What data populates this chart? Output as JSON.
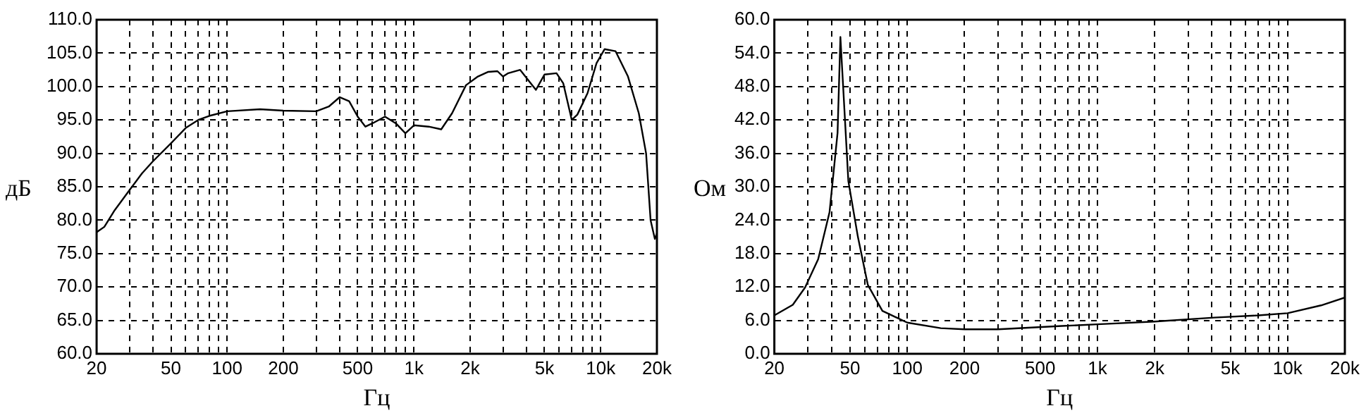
{
  "chart_data": [
    {
      "type": "line",
      "xlabel": "Гц",
      "ylabel": "дБ",
      "log": "x",
      "grid": true,
      "marker": "none",
      "line_style": "solid",
      "xlim": [
        20,
        20000
      ],
      "xticks": [
        20,
        {
          "value": 30,
          "label": null
        },
        {
          "value": 40,
          "label": null
        },
        50,
        {
          "value": 60,
          "label": null
        },
        {
          "value": 70,
          "label": null
        },
        {
          "value": 80,
          "label": null
        },
        {
          "value": 90,
          "label": null
        },
        100,
        200,
        {
          "value": 300,
          "label": null
        },
        {
          "value": 400,
          "label": null
        },
        500,
        {
          "value": 600,
          "label": null
        },
        {
          "value": 700,
          "label": null
        },
        {
          "value": 800,
          "label": null
        },
        {
          "value": 900,
          "label": null
        },
        {
          "value": 1000,
          "label": "1k"
        },
        {
          "value": 2000,
          "label": "2k"
        },
        {
          "value": 3000,
          "label": null
        },
        {
          "value": 4000,
          "label": null
        },
        {
          "value": 5000,
          "label": "5k"
        },
        {
          "value": 6000,
          "label": null
        },
        {
          "value": 7000,
          "label": null
        },
        {
          "value": 8000,
          "label": null
        },
        {
          "value": 9000,
          "label": null
        },
        {
          "value": 10000,
          "label": "10k"
        },
        {
          "value": 20000,
          "label": "20k"
        }
      ],
      "ylim": [
        60,
        110
      ],
      "yticks": [
        {
          "value": 60,
          "label": "60.0"
        },
        {
          "value": 65,
          "label": "65.0"
        },
        {
          "value": 70,
          "label": "70.0"
        },
        {
          "value": 75,
          "label": "75.0"
        },
        {
          "value": 80,
          "label": "80.0"
        },
        {
          "value": 85,
          "label": "85.0"
        },
        {
          "value": 90,
          "label": "90.0"
        },
        {
          "value": 95,
          "label": "95.0"
        },
        {
          "value": 100,
          "label": "100.0"
        },
        {
          "value": 105,
          "label": "105.0"
        },
        {
          "value": 110,
          "label": "110.0"
        }
      ],
      "x": [
        20,
        22,
        25,
        30,
        35,
        40,
        50,
        60,
        70,
        80,
        100,
        150,
        200,
        300,
        350,
        400,
        450,
        500,
        550,
        600,
        700,
        800,
        900,
        1000,
        1200,
        1400,
        1600,
        1900,
        2200,
        2500,
        2800,
        3000,
        3200,
        3700,
        4500,
        5000,
        5800,
        6300,
        7000,
        7500,
        8500,
        9500,
        10500,
        12000,
        14000,
        16000,
        17500,
        18500,
        19500,
        20000
      ],
      "series": [
        {
          "color": "#000000",
          "values": [
            78.2,
            79,
            81.5,
            84.5,
            87,
            88.8,
            91.5,
            93.8,
            95,
            95.6,
            96.3,
            96.6,
            96.4,
            96.3,
            97,
            98.4,
            97.8,
            95.5,
            94,
            94.5,
            95.5,
            94.5,
            93,
            94.2,
            94,
            93.6,
            96,
            100.2,
            101.5,
            102.2,
            102.3,
            101.5,
            102,
            102.5,
            99.5,
            101.8,
            102,
            100.5,
            95,
            95.8,
            99,
            103.5,
            105.6,
            105.3,
            101.5,
            96,
            90,
            80,
            77.2,
            78
          ]
        }
      ]
    },
    {
      "type": "line",
      "xlabel": "Гц",
      "ylabel": "Ом",
      "log": "x",
      "grid": true,
      "marker": "none",
      "line_style": "solid",
      "xlim": [
        20,
        20000
      ],
      "xticks": [
        20,
        {
          "value": 30,
          "label": null
        },
        {
          "value": 40,
          "label": null
        },
        50,
        {
          "value": 60,
          "label": null
        },
        {
          "value": 70,
          "label": null
        },
        {
          "value": 80,
          "label": null
        },
        {
          "value": 90,
          "label": null
        },
        100,
        200,
        {
          "value": 300,
          "label": null
        },
        {
          "value": 400,
          "label": null
        },
        500,
        {
          "value": 600,
          "label": null
        },
        {
          "value": 700,
          "label": null
        },
        {
          "value": 800,
          "label": null
        },
        {
          "value": 900,
          "label": null
        },
        {
          "value": 1000,
          "label": "1k"
        },
        {
          "value": 2000,
          "label": "2k"
        },
        {
          "value": 3000,
          "label": null
        },
        {
          "value": 4000,
          "label": null
        },
        {
          "value": 5000,
          "label": "5k"
        },
        {
          "value": 6000,
          "label": null
        },
        {
          "value": 7000,
          "label": null
        },
        {
          "value": 8000,
          "label": null
        },
        {
          "value": 9000,
          "label": null
        },
        {
          "value": 10000,
          "label": "10k"
        },
        {
          "value": 20000,
          "label": "20k"
        }
      ],
      "ylim": [
        0,
        60
      ],
      "yticks": [
        {
          "value": 0,
          "label": "0.0"
        },
        {
          "value": 6,
          "label": "6.0"
        },
        {
          "value": 12,
          "label": "12.0"
        },
        {
          "value": 18,
          "label": "18.0"
        },
        {
          "value": 24,
          "label": "24.0"
        },
        {
          "value": 30,
          "label": "30.0"
        },
        {
          "value": 36,
          "label": "36.0"
        },
        {
          "value": 42,
          "label": "42.0"
        },
        {
          "value": 48,
          "label": "48.0"
        },
        {
          "value": 54,
          "label": "54.0"
        },
        {
          "value": 60,
          "label": "60.0"
        }
      ],
      "x": [
        20,
        25,
        29,
        34,
        39,
        43,
        44.5,
        46,
        49,
        55,
        62,
        74,
        100,
        150,
        200,
        300,
        650,
        1000,
        2000,
        4100,
        7000,
        10000,
        15000,
        20000
      ],
      "series": [
        {
          "color": "#000000",
          "values": [
            6.9,
            8.8,
            11.9,
            17,
            25.4,
            39.7,
            56.9,
            48,
            31,
            21,
            12.4,
            7.7,
            5.6,
            4.6,
            4.4,
            4.4,
            5,
            5.3,
            5.8,
            6.5,
            6.9,
            7.3,
            8.7,
            10.1
          ]
        }
      ]
    }
  ]
}
